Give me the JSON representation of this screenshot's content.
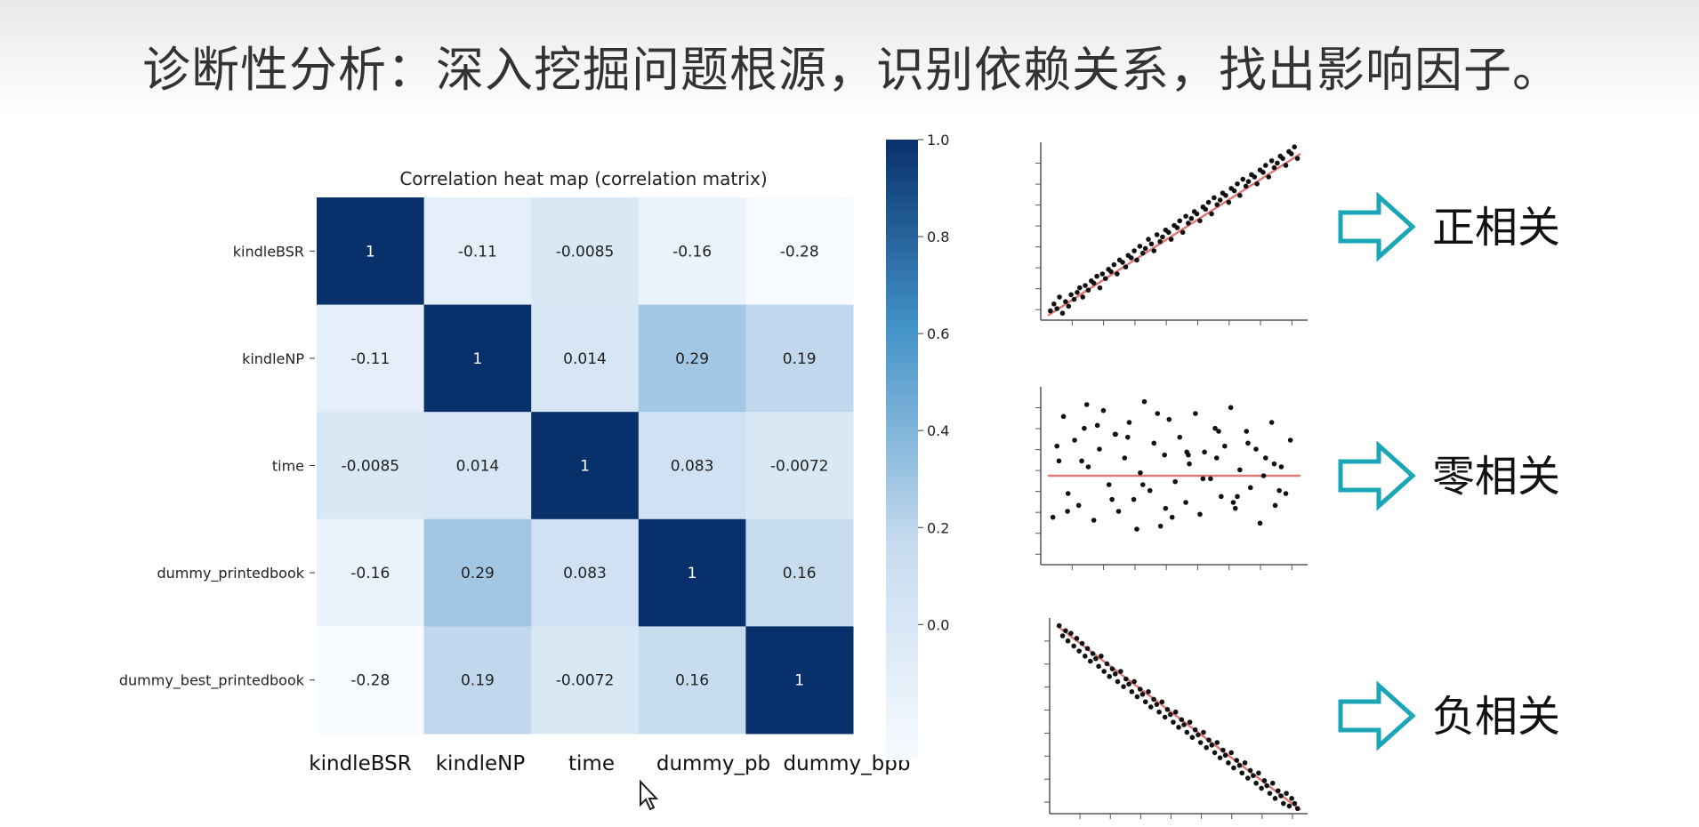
{
  "slide": {
    "title": "诊断性分析：深入挖掘问题根源，识别依赖关系，找出影响因子。"
  },
  "heatmap": {
    "title": "Correlation heat map (correlation matrix)",
    "row_labels": [
      "kindleBSR",
      "kindleNP",
      "time",
      "dummy_printedbook",
      "dummy_best_printedbook"
    ],
    "col_labels": [
      "kindleBSR",
      "kindleNP",
      "time",
      "dummy_pb",
      "dummy_bpb"
    ],
    "cell_text": [
      [
        "1",
        "-0.11",
        "-0.0085",
        "-0.16",
        "-0.28"
      ],
      [
        "-0.11",
        "1",
        "0.014",
        "0.29",
        "0.19"
      ],
      [
        "-0.0085",
        "0.014",
        "1",
        "0.083",
        "-0.0072"
      ],
      [
        "-0.16",
        "0.29",
        "0.083",
        "1",
        "0.16"
      ],
      [
        "-0.28",
        "0.19",
        "-0.0072",
        "0.16",
        "1"
      ]
    ],
    "colorbar_ticks": [
      "1.0",
      "0.8",
      "0.6",
      "0.4",
      "0.2",
      "0.0"
    ]
  },
  "chart_data": [
    {
      "type": "heatmap",
      "title": "Correlation heat map (correlation matrix)",
      "x_categories": [
        "kindleBSR",
        "kindleNP",
        "time",
        "dummy_pb",
        "dummy_bpb"
      ],
      "y_categories": [
        "kindleBSR",
        "kindleNP",
        "time",
        "dummy_printedbook",
        "dummy_best_printedbook"
      ],
      "values": [
        [
          1,
          -0.11,
          -0.0085,
          -0.16,
          -0.28
        ],
        [
          -0.11,
          1,
          0.014,
          0.29,
          0.19
        ],
        [
          -0.0085,
          0.014,
          1,
          0.083,
          -0.0072
        ],
        [
          -0.16,
          0.29,
          0.083,
          1,
          0.16
        ],
        [
          -0.28,
          0.19,
          -0.0072,
          0.16,
          1
        ]
      ],
      "colormap": "Blues",
      "colorbar_range": [
        -0.28,
        1.0
      ],
      "colorbar_ticks": [
        0.0,
        0.2,
        0.4,
        0.6,
        0.8,
        1.0
      ]
    },
    {
      "type": "scatter",
      "label": "正相关",
      "trend": "positive",
      "x": [
        0.5,
        1.2,
        1.8,
        2.3,
        2.9,
        3.5,
        4.1,
        4.6,
        5.2,
        5.8,
        6.3,
        6.9,
        7.4,
        8.0,
        8.6,
        9.1,
        9.7,
        10.3,
        10.8,
        11.4,
        12.0,
        12.5,
        13.1,
        13.7,
        14.2,
        14.8,
        15.4,
        15.9,
        16.5,
        17.1,
        17.6,
        18.2,
        18.8,
        19.3,
        19.9,
        20.5,
        21.0,
        21.6,
        22.2,
        22.7,
        23.3,
        23.9,
        24.4,
        25.0,
        25.6,
        26.1,
        26.7,
        27.3,
        27.8,
        28.4,
        29.0,
        29.5,
        30.1,
        30.7,
        31.2,
        31.8,
        32.4,
        32.9,
        33.5,
        34.1,
        34.6,
        35.2,
        35.8,
        36.3,
        36.9,
        37.5,
        38.0,
        38.6,
        39.2,
        39.7,
        40.3,
        40.9,
        41.4,
        42.0,
        42.6,
        43.1,
        43.7,
        44.3,
        44.8,
        45.4,
        46.0,
        46.5,
        47.1,
        47.7,
        48.2,
        48.8,
        49.4
      ],
      "y": [
        2,
        5,
        3,
        8,
        1,
        6,
        4,
        9,
        7,
        10,
        12,
        8,
        13,
        11,
        15,
        14,
        17,
        12,
        18,
        16,
        20,
        19,
        22,
        18,
        24,
        23,
        21,
        26,
        25,
        28,
        24,
        30,
        27,
        29,
        33,
        31,
        28,
        35,
        32,
        34,
        37,
        36,
        33,
        39,
        38,
        41,
        36,
        43,
        40,
        42,
        45,
        44,
        41,
        47,
        46,
        49,
        44,
        51,
        48,
        50,
        53,
        52,
        49,
        55,
        54,
        57,
        52,
        59,
        56,
        58,
        61,
        60,
        57,
        63,
        62,
        65,
        60,
        67,
        64,
        66,
        69,
        68,
        65,
        71,
        70,
        73,
        68
      ],
      "fit": {
        "slope": 1.4,
        "intercept": 0
      }
    },
    {
      "type": "scatter",
      "label": "零相关",
      "trend": "zero",
      "x": [
        1.0,
        2.2,
        3.1,
        4.0,
        5.3,
        6.1,
        7.2,
        8.0,
        9.1,
        10.2,
        11.0,
        12.1,
        13.3,
        14.0,
        15.2,
        16.1,
        17.0,
        18.3,
        19.1,
        20.2,
        21.0,
        22.3,
        23.1,
        24.0,
        25.2,
        26.1,
        27.3,
        28.0,
        29.2,
        30.1,
        31.0,
        32.2,
        33.1,
        34.3,
        35.0,
        36.2,
        37.1,
        38.0,
        39.3,
        40.1,
        41.2,
        42.0,
        43.1,
        44.3,
        45.0,
        46.2,
        47.1,
        48.0,
        1.8,
        3.9,
        6.7,
        9.8,
        12.7,
        15.8,
        18.8,
        21.7,
        24.6,
        27.8,
        30.7,
        33.8,
        36.7,
        39.6,
        42.7,
        45.8,
        7.7,
        17.6,
        27.5,
        37.5,
        44.8,
        13.4,
        23.3,
        33.4
      ],
      "y": [
        -14,
        5,
        20,
        -6,
        12,
        -10,
        16,
        3,
        -15,
        9,
        22,
        -3,
        14,
        -12,
        6,
        18,
        -8,
        1,
        25,
        -5,
        11,
        -17,
        7,
        19,
        -2,
        13,
        -9,
        4,
        21,
        -13,
        8,
        -1,
        16,
        -7,
        10,
        23,
        -11,
        2,
        15,
        -4,
        9,
        -16,
        6,
        18,
        -10,
        3,
        -6,
        12,
        10,
        -12,
        5,
        17,
        -8,
        13,
        -3,
        21,
        -14,
        7,
        -1,
        15,
        -9,
        11,
        0,
        -5,
        24,
        -18,
        8,
        -7,
        4,
        14,
        -11,
        6
      ],
      "fit": {
        "slope": 0,
        "intercept": 0
      }
    },
    {
      "type": "scatter",
      "label": "负相关",
      "trend": "negative",
      "x": [
        0.5,
        1.2,
        1.8,
        2.3,
        2.9,
        3.5,
        4.1,
        4.6,
        5.2,
        5.8,
        6.3,
        6.9,
        7.4,
        8.0,
        8.6,
        9.1,
        9.7,
        10.3,
        10.8,
        11.4,
        12.0,
        12.5,
        13.1,
        13.7,
        14.2,
        14.8,
        15.4,
        15.9,
        16.5,
        17.1,
        17.6,
        18.2,
        18.8,
        19.3,
        19.9,
        20.5,
        21.0,
        21.6,
        22.2,
        22.7,
        23.3,
        23.9,
        24.4,
        25.0,
        25.6,
        26.1,
        26.7,
        27.3,
        27.8,
        28.4,
        29.0,
        29.5,
        30.1,
        30.7,
        31.2,
        31.8,
        32.4,
        32.9,
        33.5,
        34.1,
        34.6,
        35.2,
        35.8,
        36.3,
        36.9,
        37.5,
        38.0,
        38.6,
        39.2,
        39.7,
        40.3,
        40.9,
        41.4,
        42.0,
        42.6,
        43.1,
        43.7,
        44.3,
        44.8,
        45.4,
        46.0,
        46.5,
        47.1,
        47.7,
        48.2,
        48.8,
        49.4
      ],
      "y": [
        72,
        68,
        70,
        66,
        69,
        64,
        67,
        62,
        65,
        60,
        63,
        58,
        61,
        59,
        56,
        60,
        54,
        57,
        52,
        55,
        53,
        50,
        54,
        48,
        51,
        49,
        46,
        50,
        44,
        47,
        45,
        42,
        46,
        40,
        43,
        41,
        38,
        42,
        36,
        39,
        37,
        34,
        38,
        32,
        35,
        33,
        30,
        34,
        28,
        31,
        29,
        26,
        30,
        24,
        27,
        25,
        22,
        26,
        20,
        23,
        21,
        18,
        22,
        16,
        19,
        17,
        14,
        18,
        12,
        15,
        13,
        10,
        14,
        8,
        11,
        9,
        6,
        10,
        4,
        7,
        5,
        2,
        6,
        1,
        4,
        2,
        0
      ],
      "fit": {
        "slope": -1.45,
        "intercept": 72
      }
    }
  ],
  "scatter_labels": [
    "正相关",
    "零相关",
    "负相关"
  ],
  "colors": {
    "heatmap_low": "#f7fbff",
    "heatmap_high": "#08306b",
    "fit_line": "#e07a7a",
    "arrow": "#1aa6b7",
    "title_text": "#333333"
  },
  "icons": [
    "arrow-right-outline-icon",
    "mouse-cursor-icon"
  ]
}
